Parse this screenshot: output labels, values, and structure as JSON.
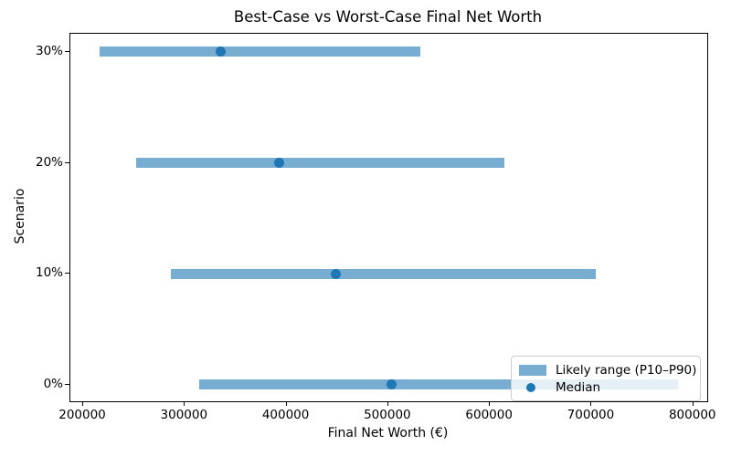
{
  "legend": {
    "range_label": "Likely range (P10–P90)",
    "median_label": "Median"
  },
  "colors": {
    "bar_fill": "#78add2",
    "median_dot": "#1f77b4",
    "axis": "#000000",
    "legend_border": "#cccccc"
  },
  "chart_data": {
    "type": "bar",
    "orientation": "horizontal",
    "title": "Best-Case vs Worst-Case Final Net Worth",
    "xlabel": "Final Net Worth (€)",
    "ylabel": "Scenario",
    "categories": [
      "30%",
      "20%",
      "10%",
      "0%"
    ],
    "series": [
      {
        "name": "P10",
        "values": [
          216000,
          252000,
          286000,
          314000
        ]
      },
      {
        "name": "Median",
        "values": [
          335000,
          393000,
          448000,
          503000
        ]
      },
      {
        "name": "P90",
        "values": [
          532000,
          614000,
          704000,
          785000
        ]
      }
    ],
    "xlim": [
      187400,
      813700
    ],
    "xticks": [
      200000,
      300000,
      400000,
      500000,
      600000,
      700000,
      800000
    ],
    "xtick_labels": [
      "200000",
      "300000",
      "400000",
      "500000",
      "600000",
      "700000",
      "800000"
    ],
    "grid": false,
    "legend_position": "lower right"
  }
}
